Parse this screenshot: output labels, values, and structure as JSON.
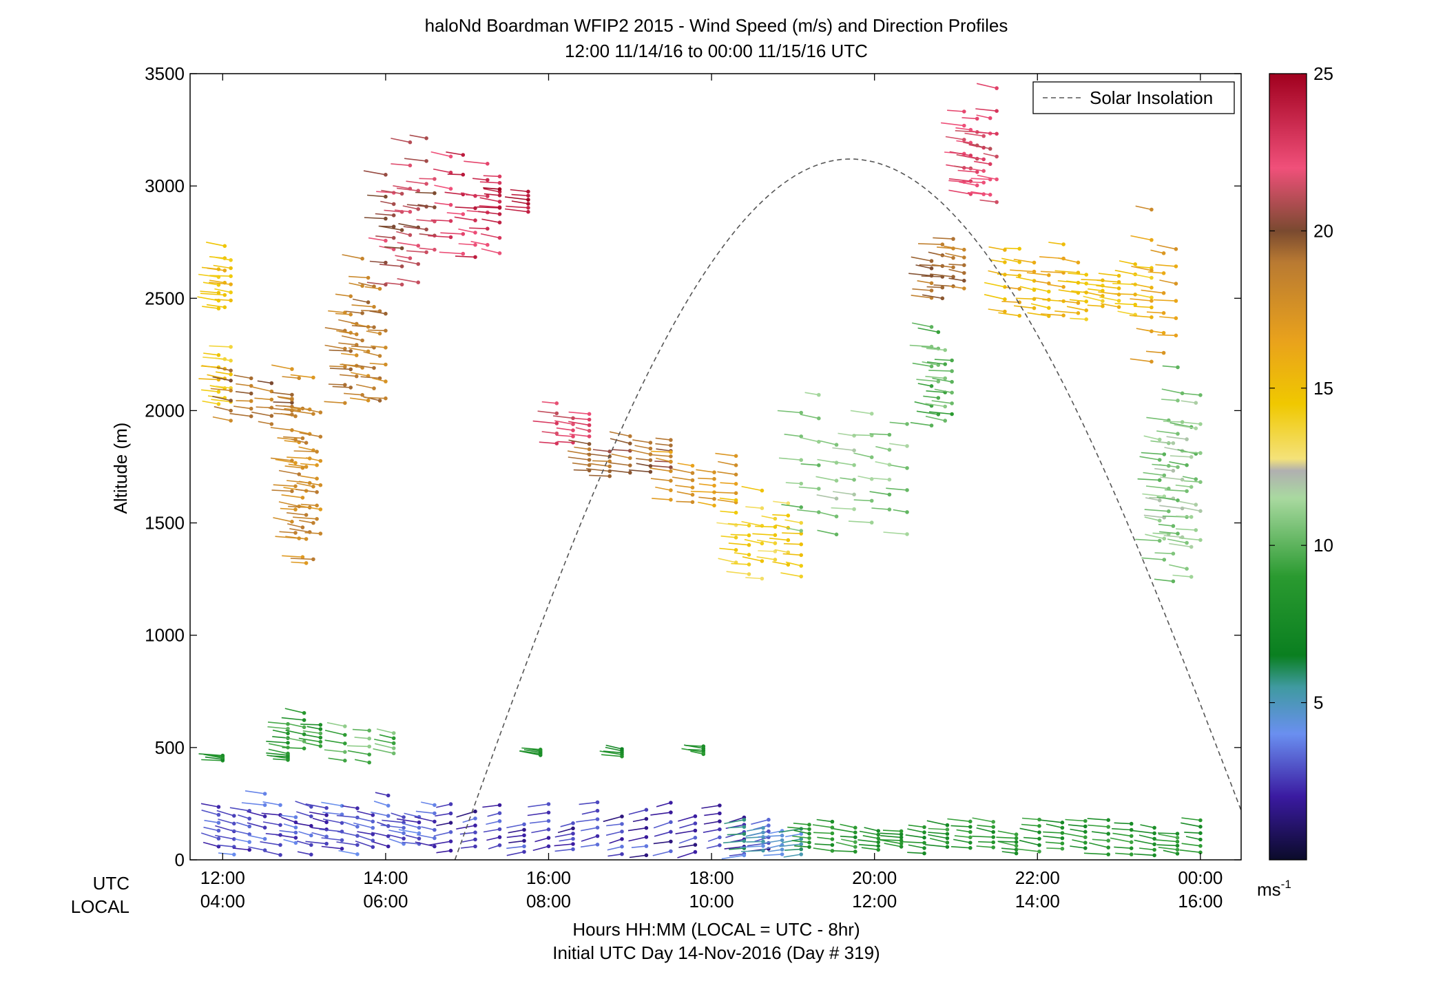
{
  "chart_data": {
    "type": "scatter",
    "title": "haloNd Boardman WFIP2 2015 - Wind Speed (m/s) and Direction Profiles",
    "subtitle": "12:00 11/14/16 to 00:00 11/15/16  UTC",
    "ylabel": "Altitude (m)",
    "xlabel_lines": [
      "Hours HH:MM  (LOCAL = UTC - 8hr)",
      "Initial UTC Day 14-Nov-2016 (Day # 319)"
    ],
    "x_axis_row_labels": {
      "utc": "UTC",
      "local": "LOCAL"
    },
    "xlim": [
      11.6,
      24.5
    ],
    "ylim": [
      0,
      3500
    ],
    "y_ticks": [
      0,
      500,
      1000,
      1500,
      2000,
      2500,
      3000,
      3500
    ],
    "x_ticks": [
      {
        "x": 12,
        "utc": "12:00",
        "local": "04:00"
      },
      {
        "x": 14,
        "utc": "14:00",
        "local": "06:00"
      },
      {
        "x": 16,
        "utc": "16:00",
        "local": "08:00"
      },
      {
        "x": 18,
        "utc": "18:00",
        "local": "10:00"
      },
      {
        "x": 20,
        "utc": "20:00",
        "local": "12:00"
      },
      {
        "x": 22,
        "utc": "22:00",
        "local": "14:00"
      },
      {
        "x": 24,
        "utc": "00:00",
        "local": "16:00"
      }
    ],
    "legend": {
      "entries": [
        "Solar Insolation"
      ],
      "position": "top-right"
    },
    "colorbar": {
      "min": 0,
      "max": 25,
      "ticks": [
        5,
        10,
        15,
        20,
        25
      ],
      "unit_label": "ms",
      "unit_exponent": "-1"
    },
    "solar_insolation": {
      "peak_x": 19.7,
      "peak_y": 3120,
      "start_x": 14.85,
      "end_x": 24.5,
      "end_y": 220
    },
    "wind_series": [
      {
        "x_start": 11.95,
        "x_end": 14.6,
        "y_min": 20,
        "y_max": 300,
        "speed": 3,
        "dir": 240,
        "n": 58
      },
      {
        "x_start": 14.8,
        "x_end": 18.7,
        "y_min": 20,
        "y_max": 260,
        "speed": 2.5,
        "dir": 300,
        "n": 54
      },
      {
        "x_start": 18.4,
        "x_end": 19.1,
        "y_min": 20,
        "y_max": 180,
        "speed": 5,
        "dir": 290,
        "n": 14
      },
      {
        "x_start": 19.2,
        "x_end": 24.0,
        "y_min": 20,
        "y_max": 180,
        "speed": 8.5,
        "dir": 250,
        "n": 70
      },
      {
        "x_start": 12.0,
        "x_end": 12.8,
        "y_min": 440,
        "y_max": 480,
        "speed": 8,
        "dir": 250,
        "n": 5
      },
      {
        "x_start": 12.8,
        "x_end": 13.2,
        "y_min": 470,
        "y_max": 660,
        "speed": 9,
        "dir": 250,
        "n": 12
      },
      {
        "x_start": 13.5,
        "x_end": 14.1,
        "y_min": 430,
        "y_max": 660,
        "speed": 10,
        "dir": 250,
        "n": 10
      },
      {
        "x_start": 15.9,
        "x_end": 17.9,
        "y_min": 460,
        "y_max": 510,
        "speed": 8,
        "dir": 250,
        "n": 10
      },
      {
        "x_start": 11.95,
        "x_end": 12.1,
        "y_min": 2450,
        "y_max": 2760,
        "speed": 15,
        "dir": 250,
        "n": 12
      },
      {
        "x_start": 11.95,
        "x_end": 12.1,
        "y_min": 2020,
        "y_max": 2300,
        "speed": 14.5,
        "dir": 250,
        "n": 10
      },
      {
        "x_start": 12.1,
        "x_end": 12.85,
        "y_min": 1920,
        "y_max": 2180,
        "speed": 19,
        "dir": 250,
        "n": 16
      },
      {
        "x_start": 12.85,
        "x_end": 13.2,
        "y_min": 1300,
        "y_max": 2240,
        "speed": 18,
        "dir": 250,
        "n": 34
      },
      {
        "x_start": 13.5,
        "x_end": 14.0,
        "y_min": 2020,
        "y_max": 2680,
        "speed": 18.5,
        "dir": 250,
        "n": 30
      },
      {
        "x_start": 14.0,
        "x_end": 14.6,
        "y_min": 2560,
        "y_max": 3220,
        "speed": 21,
        "dir": 250,
        "n": 28
      },
      {
        "x_start": 14.8,
        "x_end": 15.4,
        "y_min": 2680,
        "y_max": 3140,
        "speed": 23,
        "dir": 250,
        "n": 18
      },
      {
        "x_start": 15.4,
        "x_end": 15.75,
        "y_min": 2860,
        "y_max": 3060,
        "speed": 24,
        "dir": 250,
        "n": 8
      },
      {
        "x_start": 16.1,
        "x_end": 16.5,
        "y_min": 1840,
        "y_max": 2040,
        "speed": 22,
        "dir": 250,
        "n": 10
      },
      {
        "x_start": 16.5,
        "x_end": 17.5,
        "y_min": 1700,
        "y_max": 1900,
        "speed": 19.5,
        "dir": 250,
        "n": 18
      },
      {
        "x_start": 17.5,
        "x_end": 18.3,
        "y_min": 1560,
        "y_max": 1820,
        "speed": 17,
        "dir": 250,
        "n": 16
      },
      {
        "x_start": 18.3,
        "x_end": 19.1,
        "y_min": 1220,
        "y_max": 1700,
        "speed": 14,
        "dir": 250,
        "n": 22
      },
      {
        "x_start": 19.1,
        "x_end": 20.4,
        "y_min": 1440,
        "y_max": 2100,
        "speed": 11,
        "dir": 250,
        "n": 28
      },
      {
        "x_start": 20.7,
        "x_end": 20.95,
        "y_min": 1900,
        "y_max": 2380,
        "speed": 10,
        "dir": 250,
        "n": 14
      },
      {
        "x_start": 20.7,
        "x_end": 21.1,
        "y_min": 2480,
        "y_max": 2780,
        "speed": 19,
        "dir": 250,
        "n": 14
      },
      {
        "x_start": 21.1,
        "x_end": 21.5,
        "y_min": 2900,
        "y_max": 3480,
        "speed": 22,
        "dir": 250,
        "n": 22
      },
      {
        "x_start": 21.6,
        "x_end": 22.5,
        "y_min": 2400,
        "y_max": 2750,
        "speed": 15.5,
        "dir": 250,
        "n": 22
      },
      {
        "x_start": 22.6,
        "x_end": 23.4,
        "y_min": 2400,
        "y_max": 2720,
        "speed": 15,
        "dir": 250,
        "n": 20
      },
      {
        "x_start": 23.4,
        "x_end": 23.7,
        "y_min": 2200,
        "y_max": 2900,
        "speed": 17,
        "dir": 250,
        "n": 12
      },
      {
        "x_start": 23.5,
        "x_end": 24.0,
        "y_min": 1240,
        "y_max": 2220,
        "speed": 11,
        "dir": 250,
        "n": 40
      }
    ]
  }
}
